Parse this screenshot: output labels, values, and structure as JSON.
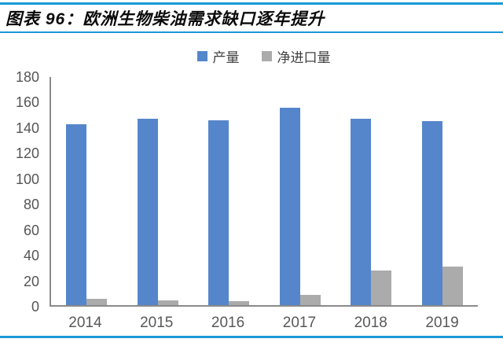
{
  "header": {
    "title": "图表 96：欧洲生物柴油需求缺口逐年提升"
  },
  "colors": {
    "accent_blue": "#1a99d6",
    "axis_line": "#8a8a8a",
    "tick_text": "#555555",
    "title_text": "#0a0a0a"
  },
  "chart_data": {
    "type": "bar",
    "title": "欧洲生物柴油需求缺口逐年提升",
    "categories": [
      "2014",
      "2015",
      "2016",
      "2017",
      "2018",
      "2019"
    ],
    "series": [
      {
        "key": "production",
        "name": "产量",
        "color": "#5586cb",
        "values": [
          142,
          146,
          145,
          155,
          146,
          144
        ]
      },
      {
        "key": "net-imports",
        "name": "净进口量",
        "color": "#ababab",
        "values": [
          5,
          4,
          3,
          8,
          27,
          30
        ]
      }
    ],
    "xlabel": "",
    "ylabel": "",
    "ylim": [
      0,
      180
    ],
    "ytick_step": 20,
    "grid": false,
    "legend_position": "top-center"
  }
}
